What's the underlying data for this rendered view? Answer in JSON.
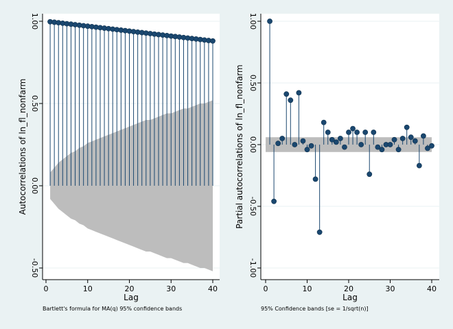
{
  "chart_data": [
    {
      "type": "stem",
      "ylabel": "Autocorrelations of ln_fl_nonfarm",
      "xlabel": "Lag",
      "note": "Bartlett's formula for MA(q) 95% confidence bands",
      "xlim": [
        0,
        40
      ],
      "ylim": [
        -0.5,
        1.0
      ],
      "xticks": [
        0,
        10,
        20,
        30,
        40
      ],
      "yticks": [
        -0.5,
        0.0,
        0.5,
        1.0
      ],
      "ytick_labels": [
        "-0.50",
        "0.00",
        "0.50",
        "1.00"
      ],
      "band": {
        "lag": [
          1,
          2,
          3,
          4,
          5,
          6,
          7,
          8,
          9,
          10,
          11,
          12,
          13,
          14,
          15,
          16,
          17,
          18,
          19,
          20,
          21,
          22,
          23,
          24,
          25,
          26,
          27,
          28,
          29,
          30,
          31,
          32,
          33,
          34,
          35,
          36,
          37,
          38,
          39,
          40
        ],
        "upper": [
          0.08,
          0.11,
          0.14,
          0.16,
          0.18,
          0.2,
          0.21,
          0.23,
          0.24,
          0.26,
          0.27,
          0.28,
          0.29,
          0.3,
          0.31,
          0.32,
          0.33,
          0.34,
          0.35,
          0.36,
          0.37,
          0.38,
          0.39,
          0.4,
          0.4,
          0.41,
          0.42,
          0.43,
          0.44,
          0.44,
          0.45,
          0.46,
          0.47,
          0.47,
          0.48,
          0.49,
          0.5,
          0.5,
          0.51,
          0.52
        ]
      },
      "x": [
        1,
        2,
        3,
        4,
        5,
        6,
        7,
        8,
        9,
        10,
        11,
        12,
        13,
        14,
        15,
        16,
        17,
        18,
        19,
        20,
        21,
        22,
        23,
        24,
        25,
        26,
        27,
        28,
        29,
        30,
        31,
        32,
        33,
        34,
        35,
        36,
        37,
        38,
        39,
        40
      ],
      "values": [
        0.997,
        0.994,
        0.991,
        0.988,
        0.985,
        0.982,
        0.979,
        0.976,
        0.973,
        0.97,
        0.967,
        0.964,
        0.961,
        0.958,
        0.955,
        0.952,
        0.949,
        0.946,
        0.943,
        0.94,
        0.937,
        0.934,
        0.931,
        0.928,
        0.925,
        0.922,
        0.919,
        0.916,
        0.913,
        0.91,
        0.907,
        0.904,
        0.901,
        0.898,
        0.895,
        0.892,
        0.889,
        0.886,
        0.883,
        0.88
      ]
    },
    {
      "type": "stem",
      "ylabel": "Partial autocorrelations of ln_fl_nonfarm",
      "xlabel": "Lag",
      "note": "95% Confidence bands [se = 1/sqrt(n)]",
      "xlim": [
        0,
        40
      ],
      "ylim": [
        -1.0,
        1.0
      ],
      "xticks": [
        0,
        10,
        20,
        30,
        40
      ],
      "yticks": [
        -1.0,
        -0.5,
        0.0,
        0.5,
        1.0
      ],
      "ytick_labels": [
        "-1.00",
        "-0.50",
        "0.00",
        "0.50",
        "1.00"
      ],
      "band": {
        "lower": -0.06,
        "upper": 0.06
      },
      "x": [
        1,
        2,
        3,
        4,
        5,
        6,
        7,
        8,
        9,
        10,
        11,
        12,
        13,
        14,
        15,
        16,
        17,
        18,
        19,
        20,
        21,
        22,
        23,
        24,
        25,
        26,
        27,
        28,
        29,
        30,
        31,
        32,
        33,
        34,
        35,
        36,
        37,
        38,
        39,
        40
      ],
      "values": [
        1.0,
        -0.46,
        0.01,
        0.05,
        0.41,
        0.36,
        0.0,
        0.42,
        0.03,
        -0.04,
        -0.01,
        -0.28,
        -0.71,
        0.18,
        0.1,
        0.04,
        0.02,
        0.05,
        -0.02,
        0.1,
        0.13,
        0.1,
        0.0,
        0.1,
        -0.24,
        0.1,
        -0.02,
        -0.04,
        0.0,
        0.0,
        0.04,
        -0.04,
        0.05,
        0.14,
        0.06,
        0.03,
        -0.17,
        0.07,
        -0.03,
        -0.01
      ]
    }
  ]
}
